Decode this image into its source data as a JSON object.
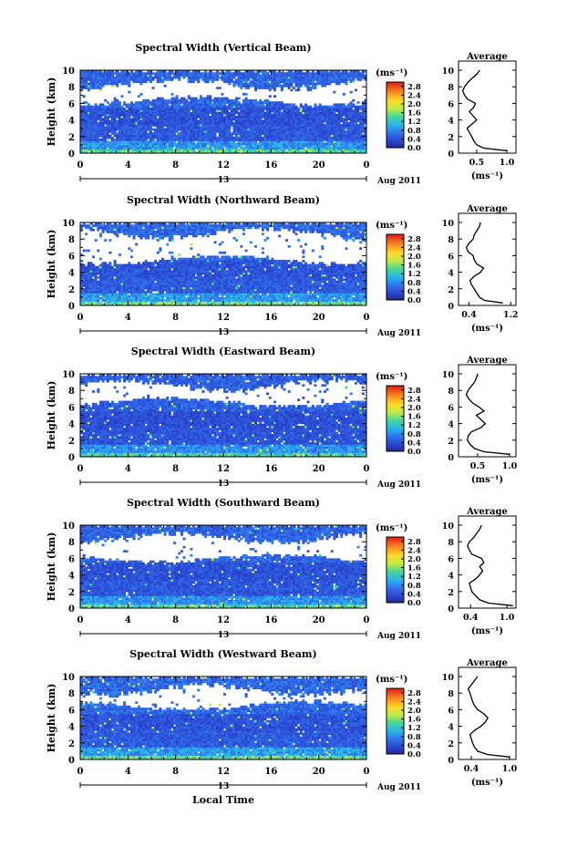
{
  "chart_data": [
    {
      "type": "heatmap",
      "title": "Spectral Width (Vertical Beam)",
      "ylabel": "Height (km)",
      "xlabel": "",
      "xlim": [
        0,
        24
      ],
      "ylim": [
        0,
        10
      ],
      "x_ticks": [
        "0",
        "4",
        "8",
        "12",
        "16",
        "20",
        "0"
      ],
      "y_ticks": [
        "0",
        "2",
        "4",
        "6",
        "8",
        "10"
      ],
      "date_day": "13",
      "date_label": "Aug 2011",
      "colorbar": {
        "unit": "(ms⁻¹)",
        "ticks": [
          "0.0",
          "0.4",
          "0.8",
          "1.2",
          "1.6",
          "2.0",
          "2.4",
          "2.8"
        ],
        "range": [
          0,
          3.0
        ]
      },
      "field": {
        "cloud_base": 6.3,
        "gap_top": 8.3,
        "scale": 1.0,
        "seed": 11
      },
      "average": {
        "title": "Average",
        "xlabel": "(ms⁻¹)",
        "x_ticks": [
          "0.5",
          "1.0"
        ],
        "xlim": [
          0.2,
          1.15
        ],
        "ylim": [
          0,
          10
        ],
        "y_ticks": [
          "0",
          "2",
          "4",
          "6",
          "8",
          "10"
        ],
        "profile": {
          "height": [
            0.3,
            0.6,
            1.0,
            1.5,
            2.0,
            2.5,
            3.0,
            3.5,
            4.0,
            4.5,
            5.0,
            5.5,
            6.0,
            6.5,
            7.0,
            7.5,
            8.0,
            8.5,
            9.0,
            9.5,
            10.0
          ],
          "value": [
            1.0,
            0.62,
            0.5,
            0.45,
            0.42,
            0.38,
            0.34,
            0.42,
            0.5,
            0.44,
            0.38,
            0.45,
            0.48,
            0.35,
            0.3,
            0.27,
            0.3,
            0.35,
            0.42,
            0.5,
            0.55
          ]
        }
      }
    },
    {
      "type": "heatmap",
      "title": "Spectral Width (Northward Beam)",
      "ylabel": "Height (km)",
      "xlabel": "",
      "xlim": [
        0,
        24
      ],
      "ylim": [
        0,
        10
      ],
      "x_ticks": [
        "0",
        "4",
        "8",
        "12",
        "16",
        "20",
        "0"
      ],
      "y_ticks": [
        "0",
        "2",
        "4",
        "6",
        "8",
        "10"
      ],
      "date_day": "13",
      "date_label": "Aug 2011",
      "colorbar": {
        "unit": "(ms⁻¹)",
        "ticks": [
          "0.0",
          "0.4",
          "0.8",
          "1.2",
          "1.6",
          "2.0",
          "2.4",
          "2.8"
        ],
        "range": [
          0,
          3.0
        ]
      },
      "field": {
        "cloud_base": 5.5,
        "gap_top": 8.7,
        "scale": 1.05,
        "seed": 23
      },
      "average": {
        "title": "Average",
        "xlabel": "(ms⁻¹)",
        "x_ticks": [
          "0.4",
          "1.2"
        ],
        "xlim": [
          0.2,
          1.3
        ],
        "ylim": [
          0,
          10
        ],
        "y_ticks": [
          "0",
          "2",
          "4",
          "6",
          "8",
          "10"
        ],
        "profile": {
          "height": [
            0.3,
            0.6,
            1.0,
            1.5,
            2.0,
            2.5,
            3.0,
            3.5,
            4.0,
            4.5,
            5.0,
            5.5,
            6.0,
            6.5,
            7.0,
            7.5,
            8.0,
            8.5,
            9.0,
            9.5,
            10.0
          ],
          "value": [
            1.05,
            0.7,
            0.6,
            0.55,
            0.5,
            0.45,
            0.42,
            0.5,
            0.62,
            0.68,
            0.55,
            0.5,
            0.48,
            0.38,
            0.35,
            0.4,
            0.48,
            0.5,
            0.55,
            0.6,
            0.62
          ]
        }
      }
    },
    {
      "type": "heatmap",
      "title": "Spectral Width (Eastward Beam)",
      "ylabel": "Height (km)",
      "xlabel": "",
      "xlim": [
        0,
        24
      ],
      "ylim": [
        0,
        10
      ],
      "x_ticks": [
        "0",
        "4",
        "8",
        "12",
        "16",
        "20",
        "0"
      ],
      "y_ticks": [
        "0",
        "2",
        "4",
        "6",
        "8",
        "10"
      ],
      "date_day": "13",
      "date_label": "Aug 2011",
      "colorbar": {
        "unit": "(ms⁻¹)",
        "ticks": [
          "0.0",
          "0.4",
          "0.8",
          "1.2",
          "1.6",
          "2.0",
          "2.4",
          "2.8"
        ],
        "range": [
          0,
          3.0
        ]
      },
      "field": {
        "cloud_base": 6.6,
        "gap_top": 8.6,
        "scale": 0.95,
        "seed": 37
      },
      "average": {
        "title": "Average",
        "xlabel": "(ms⁻¹)",
        "x_ticks": [
          "0.5",
          "1.0"
        ],
        "xlim": [
          0.2,
          1.1
        ],
        "ylim": [
          0,
          10
        ],
        "y_ticks": [
          "0",
          "2",
          "4",
          "6",
          "8",
          "10"
        ],
        "profile": {
          "height": [
            0.3,
            0.6,
            1.0,
            1.5,
            2.0,
            2.5,
            3.0,
            3.5,
            4.0,
            4.5,
            5.0,
            5.5,
            6.0,
            6.5,
            7.0,
            7.5,
            8.0,
            8.5,
            9.0,
            9.5,
            10.0
          ],
          "value": [
            1.0,
            0.6,
            0.45,
            0.38,
            0.34,
            0.35,
            0.4,
            0.55,
            0.62,
            0.55,
            0.48,
            0.6,
            0.52,
            0.42,
            0.36,
            0.32,
            0.35,
            0.4,
            0.45,
            0.48,
            0.5
          ]
        }
      }
    },
    {
      "type": "heatmap",
      "title": "Spectral Width (Southward Beam)",
      "ylabel": "Height (km)",
      "xlabel": "",
      "xlim": [
        0,
        24
      ],
      "ylim": [
        0,
        10
      ],
      "x_ticks": [
        "0",
        "4",
        "8",
        "12",
        "16",
        "20",
        "0"
      ],
      "y_ticks": [
        "0",
        "2",
        "4",
        "6",
        "8",
        "10"
      ],
      "date_day": "13",
      "date_label": "Aug 2011",
      "colorbar": {
        "unit": "(ms⁻¹)",
        "ticks": [
          "0.0",
          "0.4",
          "0.8",
          "1.2",
          "1.6",
          "2.0",
          "2.4",
          "2.8"
        ],
        "range": [
          0,
          3.0
        ]
      },
      "field": {
        "cloud_base": 6.0,
        "gap_top": 8.5,
        "scale": 1.0,
        "seed": 53
      },
      "average": {
        "title": "Average",
        "xlabel": "(ms⁻¹)",
        "x_ticks": [
          "0.4",
          "1.0"
        ],
        "xlim": [
          0.2,
          1.15
        ],
        "ylim": [
          0,
          10
        ],
        "y_ticks": [
          "0",
          "2",
          "4",
          "6",
          "8",
          "10"
        ],
        "profile": {
          "height": [
            0.3,
            0.6,
            1.0,
            1.5,
            2.0,
            2.5,
            3.0,
            3.5,
            4.0,
            4.5,
            5.0,
            5.5,
            6.0,
            6.5,
            7.0,
            7.5,
            8.0,
            8.5,
            9.0,
            9.5,
            10.0
          ],
          "value": [
            1.1,
            0.7,
            0.55,
            0.48,
            0.42,
            0.4,
            0.38,
            0.48,
            0.55,
            0.6,
            0.55,
            0.62,
            0.58,
            0.42,
            0.38,
            0.35,
            0.38,
            0.45,
            0.5,
            0.55,
            0.58
          ]
        }
      }
    },
    {
      "type": "heatmap",
      "title": "Spectral Width (Westward Beam)",
      "ylabel": "Height (km)",
      "xlabel": "Local Time",
      "xlim": [
        0,
        24
      ],
      "ylim": [
        0,
        10
      ],
      "x_ticks": [
        "0",
        "4",
        "8",
        "12",
        "16",
        "20",
        "0"
      ],
      "y_ticks": [
        "0",
        "2",
        "4",
        "6",
        "8",
        "10"
      ],
      "date_day": "13",
      "date_label": "Aug 2011",
      "colorbar": {
        "unit": "(ms⁻¹)",
        "ticks": [
          "0.0",
          "0.4",
          "0.8",
          "1.2",
          "1.6",
          "2.0",
          "2.4",
          "2.8"
        ],
        "range": [
          0,
          3.0
        ]
      },
      "field": {
        "cloud_base": 6.5,
        "gap_top": 8.4,
        "scale": 1.05,
        "seed": 71
      },
      "average": {
        "title": "Average",
        "xlabel": "(ms⁻¹)",
        "x_ticks": [
          "0.4",
          "1.0"
        ],
        "xlim": [
          0.2,
          1.1
        ],
        "ylim": [
          0,
          10
        ],
        "y_ticks": [
          "0",
          "2",
          "4",
          "6",
          "8",
          "10"
        ],
        "profile": {
          "height": [
            0.3,
            0.6,
            1.0,
            1.5,
            2.0,
            2.5,
            3.0,
            3.5,
            4.0,
            4.5,
            5.0,
            5.5,
            6.0,
            6.5,
            7.0,
            7.5,
            8.0,
            8.5,
            9.0,
            9.5,
            10.0
          ],
          "value": [
            1.0,
            0.65,
            0.5,
            0.45,
            0.42,
            0.4,
            0.38,
            0.45,
            0.55,
            0.62,
            0.66,
            0.6,
            0.5,
            0.45,
            0.42,
            0.4,
            0.38,
            0.35,
            0.4,
            0.45,
            0.5
          ]
        }
      }
    }
  ]
}
